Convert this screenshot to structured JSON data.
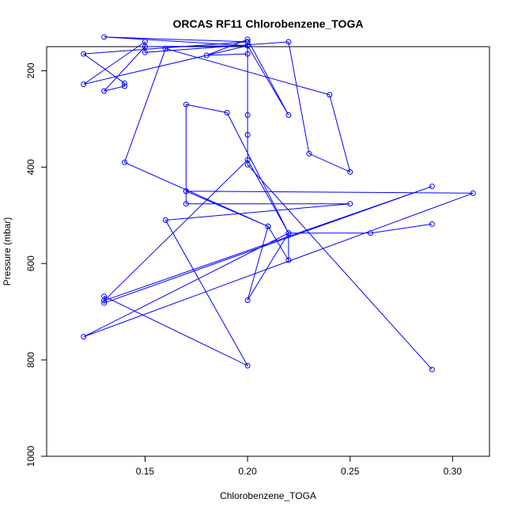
{
  "chart_data": {
    "type": "line",
    "title": "ORCAS RF11 Chlorobenzene_TOGA",
    "xlabel": "Chlorobenzene_TOGA",
    "ylabel": "Pressure (mbar)",
    "xlim": [
      0.102,
      0.318
    ],
    "ylim": [
      1000,
      150
    ],
    "y_reversed": true,
    "grid": false,
    "x_ticks": [
      0.15,
      0.2,
      0.25,
      0.3
    ],
    "x_tick_labels": [
      "0.15",
      "0.20",
      "0.25",
      "0.30"
    ],
    "y_ticks": [
      200,
      400,
      600,
      800,
      1000
    ],
    "y_tick_labels": [
      "200",
      "400",
      "600",
      "800",
      "1000"
    ],
    "series": [
      {
        "color": "#0000ff",
        "x": [
          0.29,
          0.2,
          0.2,
          0.2,
          0.2,
          0.2,
          0.18,
          0.2,
          0.22,
          0.2,
          0.15,
          0.13,
          0.14,
          0.14,
          0.12,
          0.2,
          0.13,
          0.2,
          0.12,
          0.15,
          0.15,
          0.22,
          0.23,
          0.25,
          0.24,
          0.16,
          0.14,
          0.21,
          0.17,
          0.17,
          0.19,
          0.22,
          0.22,
          0.21,
          0.2,
          0.22,
          0.12,
          0.31,
          0.17,
          0.17,
          0.25,
          0.16,
          0.2,
          0.13,
          0.13,
          0.29,
          0.13,
          0.2,
          0.22,
          0.26,
          0.29
        ],
        "y": [
          820,
          395,
          333,
          292,
          148,
          165,
          168,
          135,
          292,
          148,
          150,
          242,
          232,
          226,
          165,
          140,
          130,
          148,
          228,
          140,
          162,
          140,
          372,
          410,
          250,
          154,
          390,
          523,
          450,
          270,
          287,
          537,
          593,
          523,
          676,
          537,
          752,
          454,
          450,
          476,
          476,
          510,
          812,
          668,
          682,
          440,
          677,
          385,
          537,
          537,
          518
        ]
      }
    ]
  }
}
